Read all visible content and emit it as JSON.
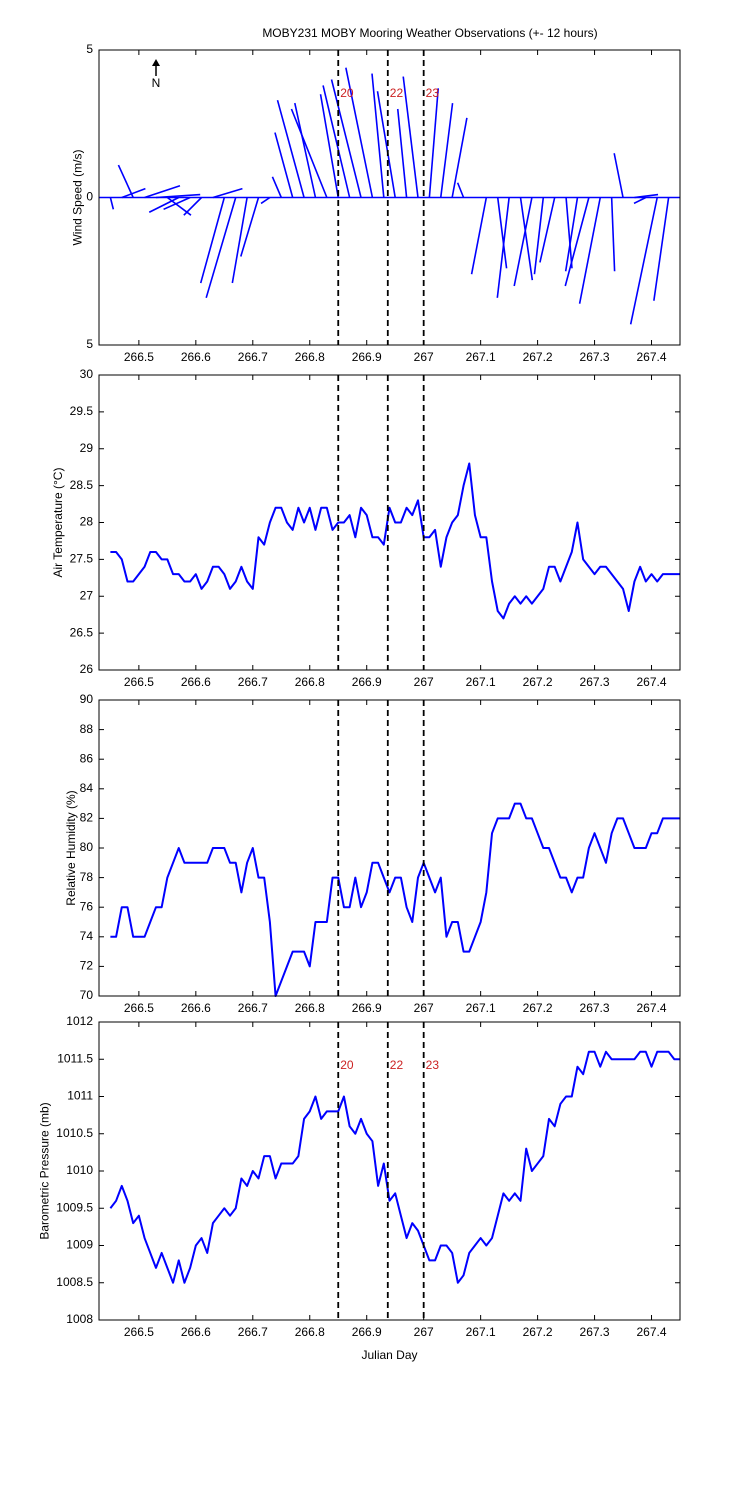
{
  "chart_data": [
    {
      "type": "stick",
      "title": "MOBY231 MOBY Mooring Weather Observations (+- 12 hours)",
      "ylabel": "Wind Speed (m/s)",
      "north_label": "N",
      "color": "#0000ff",
      "xlim": [
        266.43,
        267.45
      ],
      "xticks": [
        266.5,
        266.6,
        266.7,
        266.8,
        266.9,
        267,
        267.1,
        267.2,
        267.3,
        267.4
      ],
      "ylim": [
        -5,
        5
      ],
      "yticks": [
        {
          "value": -5,
          "label": "5"
        },
        0,
        5
      ],
      "vlines": [
        266.85,
        266.937,
        267.0
      ],
      "vline_labels": [
        "20",
        "22",
        "23"
      ],
      "vline_label_color": "#cc2222",
      "x": [
        266.45,
        266.47,
        266.49,
        266.51,
        266.53,
        266.55,
        266.57,
        266.59,
        266.61,
        266.63,
        266.65,
        266.67,
        266.69,
        266.71,
        266.73,
        266.75,
        266.77,
        266.79,
        266.81,
        266.83,
        266.85,
        266.87,
        266.89,
        266.91,
        266.93,
        266.95,
        266.97,
        266.99,
        267.01,
        267.03,
        267.05,
        267.07,
        267.09,
        267.11,
        267.13,
        267.15,
        267.17,
        267.19,
        267.21,
        267.23,
        267.25,
        267.27,
        267.29,
        267.31,
        267.33,
        267.35,
        267.37,
        267.39,
        267.41,
        267.43
      ],
      "u": [
        0.1,
        0.8,
        -0.5,
        1.2,
        1.5,
        0.8,
        -1.0,
        -0.9,
        -0.6,
        1.0,
        -0.8,
        -1.0,
        -0.5,
        -0.6,
        -0.3,
        -0.3,
        -0.6,
        -0.9,
        -0.7,
        -1.2,
        -0.6,
        -0.9,
        -1.0,
        -0.9,
        -0.4,
        -0.6,
        -0.3,
        -0.5,
        0.3,
        0.4,
        0.5,
        -0.2,
        0,
        -0.5,
        0.3,
        -0.4,
        0.4,
        -0.6,
        -0.3,
        -0.5,
        0.2,
        -0.4,
        -0.8,
        -0.7,
        0.1,
        -0.3,
        0.8,
        -0.4,
        -0.9,
        -0.5
      ],
      "v": [
        -0.4,
        0.3,
        1.1,
        0.4,
        0.1,
        -0.6,
        -0.5,
        -0.4,
        -0.6,
        0.3,
        -2.9,
        -3.4,
        -2.9,
        -2.0,
        -0.2,
        0.7,
        2.2,
        3.3,
        3.2,
        3.0,
        3.5,
        3.8,
        4.0,
        4.4,
        4.2,
        3.6,
        3.0,
        4.1,
        3.7,
        3.2,
        2.7,
        0.5,
        0,
        -2.6,
        -2.4,
        -3.4,
        -2.8,
        -3.0,
        -2.6,
        -2.2,
        -2.4,
        -2.5,
        -3.0,
        -3.6,
        -2.5,
        1.5,
        0.1,
        -0.2,
        -4.3,
        -3.5
      ]
    },
    {
      "type": "line",
      "ylabel": "Air Temperature (°C)",
      "color": "#0000ff",
      "xlim": [
        266.43,
        267.45
      ],
      "xticks": [
        266.5,
        266.6,
        266.7,
        266.8,
        266.9,
        267,
        267.1,
        267.2,
        267.3,
        267.4
      ],
      "ylim": [
        26,
        30
      ],
      "yticks": [
        26,
        26.5,
        27,
        27.5,
        28,
        28.5,
        29,
        29.5,
        30
      ],
      "vlines": [
        266.85,
        266.937,
        267.0
      ],
      "x": [
        266.45,
        266.46,
        266.47,
        266.48,
        266.49,
        266.5,
        266.51,
        266.52,
        266.53,
        266.54,
        266.55,
        266.56,
        266.57,
        266.58,
        266.59,
        266.6,
        266.61,
        266.62,
        266.63,
        266.64,
        266.65,
        266.66,
        266.67,
        266.68,
        266.69,
        266.7,
        266.71,
        266.72,
        266.73,
        266.74,
        266.75,
        266.76,
        266.77,
        266.78,
        266.79,
        266.8,
        266.81,
        266.82,
        266.83,
        266.84,
        266.85,
        266.86,
        266.87,
        266.88,
        266.89,
        266.9,
        266.91,
        266.92,
        266.93,
        266.94,
        266.95,
        266.96,
        266.97,
        266.98,
        266.99,
        267,
        267.01,
        267.02,
        267.03,
        267.04,
        267.05,
        267.06,
        267.07,
        267.08,
        267.09,
        267.1,
        267.11,
        267.12,
        267.13,
        267.14,
        267.15,
        267.16,
        267.17,
        267.18,
        267.19,
        267.2,
        267.21,
        267.22,
        267.23,
        267.24,
        267.25,
        267.26,
        267.27,
        267.28,
        267.29,
        267.3,
        267.31,
        267.32,
        267.33,
        267.34,
        267.35,
        267.36,
        267.37,
        267.38,
        267.39,
        267.4,
        267.41,
        267.42,
        267.43,
        267.44,
        267.45
      ],
      "values": [
        27.6,
        27.6,
        27.5,
        27.2,
        27.2,
        27.3,
        27.4,
        27.6,
        27.6,
        27.5,
        27.5,
        27.3,
        27.3,
        27.2,
        27.2,
        27.3,
        27.1,
        27.2,
        27.4,
        27.4,
        27.3,
        27.1,
        27.2,
        27.4,
        27.2,
        27.1,
        27.8,
        27.7,
        28.0,
        28.2,
        28.2,
        28.0,
        27.9,
        28.2,
        28.0,
        28.2,
        27.9,
        28.2,
        28.2,
        27.9,
        28.0,
        28.0,
        28.1,
        27.8,
        28.2,
        28.1,
        27.8,
        27.8,
        27.7,
        28.2,
        28.0,
        28.0,
        28.2,
        28.1,
        28.3,
        27.8,
        27.8,
        27.9,
        27.4,
        27.8,
        28.0,
        28.1,
        28.5,
        28.8,
        28.1,
        27.8,
        27.8,
        27.2,
        26.8,
        26.7,
        26.9,
        27.0,
        26.9,
        27.0,
        26.9,
        27.0,
        27.1,
        27.4,
        27.4,
        27.2,
        27.4,
        27.6,
        28.0,
        27.5,
        27.4,
        27.3,
        27.4,
        27.4,
        27.3,
        27.2,
        27.1,
        26.8,
        27.2,
        27.4,
        27.2,
        27.3,
        27.2,
        27.3,
        27.3,
        27.3,
        27.3
      ]
    },
    {
      "type": "line",
      "ylabel": "Relative Humidity (%)",
      "color": "#0000ff",
      "xlim": [
        266.43,
        267.45
      ],
      "xticks": [
        266.5,
        266.6,
        266.7,
        266.8,
        266.9,
        267,
        267.1,
        267.2,
        267.3,
        267.4
      ],
      "ylim": [
        70,
        90
      ],
      "yticks": [
        70,
        72,
        74,
        76,
        78,
        80,
        82,
        84,
        86,
        88,
        90
      ],
      "vlines": [
        266.85,
        266.937,
        267.0
      ],
      "x": [
        266.45,
        266.46,
        266.47,
        266.48,
        266.49,
        266.5,
        266.51,
        266.52,
        266.53,
        266.54,
        266.55,
        266.56,
        266.57,
        266.58,
        266.59,
        266.6,
        266.61,
        266.62,
        266.63,
        266.64,
        266.65,
        266.66,
        266.67,
        266.68,
        266.69,
        266.7,
        266.71,
        266.72,
        266.73,
        266.74,
        266.75,
        266.76,
        266.77,
        266.78,
        266.79,
        266.8,
        266.81,
        266.82,
        266.83,
        266.84,
        266.85,
        266.86,
        266.87,
        266.88,
        266.89,
        266.9,
        266.91,
        266.92,
        266.93,
        266.94,
        266.95,
        266.96,
        266.97,
        266.98,
        266.99,
        267,
        267.01,
        267.02,
        267.03,
        267.04,
        267.05,
        267.06,
        267.07,
        267.08,
        267.09,
        267.1,
        267.11,
        267.12,
        267.13,
        267.14,
        267.15,
        267.16,
        267.17,
        267.18,
        267.19,
        267.2,
        267.21,
        267.22,
        267.23,
        267.24,
        267.25,
        267.26,
        267.27,
        267.28,
        267.29,
        267.3,
        267.31,
        267.32,
        267.33,
        267.34,
        267.35,
        267.36,
        267.37,
        267.38,
        267.39,
        267.4,
        267.41,
        267.42,
        267.43,
        267.44,
        267.45
      ],
      "values": [
        74,
        74,
        76,
        76,
        74,
        74,
        74,
        75,
        76,
        76,
        78,
        79,
        80,
        79,
        79,
        79,
        79,
        79,
        80,
        80,
        80,
        79,
        79,
        77,
        79,
        80,
        78,
        78,
        75,
        70,
        71,
        72,
        73,
        73,
        73,
        72,
        75,
        75,
        75,
        78,
        78,
        76,
        76,
        78,
        76,
        77,
        79,
        79,
        78,
        77,
        78,
        78,
        76,
        75,
        78,
        79,
        78,
        77,
        78,
        74,
        75,
        75,
        73,
        73,
        74,
        75,
        77,
        81,
        82,
        82,
        82,
        83,
        83,
        82,
        82,
        81,
        80,
        80,
        79,
        78,
        78,
        77,
        78,
        78,
        80,
        81,
        80,
        79,
        81,
        82,
        82,
        81,
        80,
        80,
        80,
        81,
        81,
        82,
        82,
        82,
        82
      ]
    },
    {
      "type": "line",
      "ylabel": "Barometric Pressure (mb)",
      "xlabel": "Julian Day",
      "color": "#0000ff",
      "xlim": [
        266.43,
        267.45
      ],
      "xticks": [
        266.5,
        266.6,
        266.7,
        266.8,
        266.9,
        267,
        267.1,
        267.2,
        267.3,
        267.4
      ],
      "ylim": [
        1008,
        1012
      ],
      "yticks": [
        1008,
        1008.5,
        1009,
        1009.5,
        1010,
        1010.5,
        1011,
        1011.5,
        1012
      ],
      "vlines": [
        266.85,
        266.937,
        267.0
      ],
      "vline_labels": [
        "20",
        "22",
        "23"
      ],
      "vline_label_color": "#cc2222",
      "x": [
        266.45,
        266.46,
        266.47,
        266.48,
        266.49,
        266.5,
        266.51,
        266.52,
        266.53,
        266.54,
        266.55,
        266.56,
        266.57,
        266.58,
        266.59,
        266.6,
        266.61,
        266.62,
        266.63,
        266.64,
        266.65,
        266.66,
        266.67,
        266.68,
        266.69,
        266.7,
        266.71,
        266.72,
        266.73,
        266.74,
        266.75,
        266.76,
        266.77,
        266.78,
        266.79,
        266.8,
        266.81,
        266.82,
        266.83,
        266.84,
        266.85,
        266.86,
        266.87,
        266.88,
        266.89,
        266.9,
        266.91,
        266.92,
        266.93,
        266.94,
        266.95,
        266.96,
        266.97,
        266.98,
        266.99,
        267,
        267.01,
        267.02,
        267.03,
        267.04,
        267.05,
        267.06,
        267.07,
        267.08,
        267.09,
        267.1,
        267.11,
        267.12,
        267.13,
        267.14,
        267.15,
        267.16,
        267.17,
        267.18,
        267.19,
        267.2,
        267.21,
        267.22,
        267.23,
        267.24,
        267.25,
        267.26,
        267.27,
        267.28,
        267.29,
        267.3,
        267.31,
        267.32,
        267.33,
        267.34,
        267.35,
        267.36,
        267.37,
        267.38,
        267.39,
        267.4,
        267.41,
        267.42,
        267.43,
        267.44,
        267.45
      ],
      "values": [
        1009.5,
        1009.6,
        1009.8,
        1009.6,
        1009.3,
        1009.4,
        1009.1,
        1008.9,
        1008.7,
        1008.9,
        1008.7,
        1008.5,
        1008.8,
        1008.5,
        1008.7,
        1009.0,
        1009.1,
        1008.9,
        1009.3,
        1009.4,
        1009.5,
        1009.4,
        1009.5,
        1009.9,
        1009.8,
        1010.0,
        1009.9,
        1010.2,
        1010.2,
        1009.9,
        1010.1,
        1010.1,
        1010.1,
        1010.2,
        1010.7,
        1010.8,
        1011.0,
        1010.7,
        1010.8,
        1010.8,
        1010.8,
        1011.0,
        1010.6,
        1010.5,
        1010.7,
        1010.5,
        1010.4,
        1009.8,
        1010.1,
        1009.6,
        1009.7,
        1009.4,
        1009.1,
        1009.3,
        1009.2,
        1009.0,
        1008.8,
        1008.8,
        1009.0,
        1009.0,
        1008.9,
        1008.5,
        1008.6,
        1008.9,
        1009.0,
        1009.1,
        1009.0,
        1009.1,
        1009.4,
        1009.7,
        1009.6,
        1009.7,
        1009.6,
        1010.3,
        1010.0,
        1010.1,
        1010.2,
        1010.7,
        1010.6,
        1010.9,
        1011.0,
        1011.0,
        1011.4,
        1011.3,
        1011.6,
        1011.6,
        1011.4,
        1011.6,
        1011.5,
        1011.5,
        1011.5,
        1011.5,
        1011.5,
        1011.6,
        1011.6,
        1011.4,
        1011.6,
        1011.6,
        1011.6,
        1011.5,
        1011.5
      ]
    }
  ]
}
